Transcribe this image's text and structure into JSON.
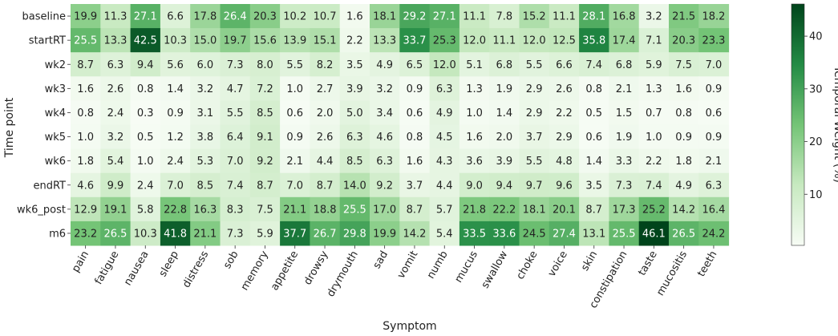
{
  "chart_data": {
    "type": "heatmap",
    "title": "",
    "xlabel": "Symptom",
    "ylabel": "Time point",
    "colorbar_label": "Temporal Weight (%)",
    "colorbar_ticks": [
      10,
      20,
      30,
      40
    ],
    "value_range": [
      0.3,
      46.1
    ],
    "colormap": {
      "low": "#f7fcf5",
      "mid": "#74c476",
      "high": "#00441b"
    },
    "grid": false,
    "x_categories": [
      "pain",
      "fatigue",
      "nausea",
      "sleep",
      "distress",
      "sob",
      "memory",
      "appetite",
      "drowsy",
      "drymouth",
      "sad",
      "vomit",
      "numb",
      "mucus",
      "swallow",
      "choke",
      "voice",
      "skin",
      "constipation",
      "taste",
      "mucositis",
      "teeth"
    ],
    "y_categories": [
      "baseline",
      "startRT",
      "wk2",
      "wk3",
      "wk4",
      "wk5",
      "wk6",
      "endRT",
      "wk6_post",
      "m6"
    ],
    "values": [
      [
        19.9,
        11.3,
        27.1,
        6.6,
        17.8,
        26.4,
        20.3,
        10.2,
        10.7,
        1.6,
        18.1,
        29.2,
        27.1,
        11.1,
        7.8,
        15.2,
        11.1,
        28.1,
        16.8,
        3.2,
        21.5,
        18.2
      ],
      [
        25.5,
        13.3,
        42.5,
        10.3,
        15.0,
        19.7,
        15.6,
        13.9,
        15.1,
        2.2,
        13.3,
        33.7,
        25.3,
        12.0,
        11.1,
        12.0,
        12.5,
        35.8,
        17.4,
        7.1,
        20.3,
        23.3
      ],
      [
        8.7,
        6.3,
        9.4,
        5.6,
        6.0,
        7.3,
        8.0,
        5.5,
        8.2,
        3.5,
        4.9,
        6.5,
        12.0,
        5.1,
        6.8,
        5.5,
        6.6,
        7.4,
        6.8,
        5.9,
        7.5,
        7.0
      ],
      [
        1.6,
        2.6,
        0.8,
        1.4,
        3.2,
        4.7,
        7.2,
        1.0,
        2.7,
        3.9,
        3.2,
        0.9,
        6.3,
        1.3,
        1.9,
        2.9,
        2.6,
        0.8,
        2.1,
        1.3,
        1.6,
        0.9
      ],
      [
        0.8,
        2.4,
        0.3,
        0.9,
        3.1,
        5.5,
        8.5,
        0.6,
        2.0,
        5.0,
        3.4,
        0.6,
        4.9,
        1.0,
        1.4,
        2.9,
        2.2,
        0.5,
        1.5,
        0.7,
        0.8,
        0.6
      ],
      [
        1.0,
        3.2,
        0.5,
        1.2,
        3.8,
        6.4,
        9.1,
        0.9,
        2.6,
        6.3,
        4.6,
        0.8,
        4.5,
        1.6,
        2.0,
        3.7,
        2.9,
        0.6,
        1.9,
        1.0,
        0.9,
        0.9
      ],
      [
        1.8,
        5.4,
        1.0,
        2.4,
        5.3,
        7.0,
        9.2,
        2.1,
        4.4,
        8.5,
        6.3,
        1.6,
        4.3,
        3.6,
        3.9,
        5.5,
        4.8,
        1.4,
        3.3,
        2.2,
        1.8,
        2.1
      ],
      [
        4.6,
        9.9,
        2.4,
        7.0,
        8.5,
        7.4,
        8.7,
        7.0,
        8.7,
        14.0,
        9.2,
        3.7,
        4.4,
        9.0,
        9.4,
        9.7,
        9.6,
        3.5,
        7.3,
        7.4,
        4.9,
        6.3
      ],
      [
        12.9,
        19.1,
        5.8,
        22.8,
        16.3,
        8.3,
        7.5,
        21.1,
        18.8,
        25.5,
        17.0,
        8.7,
        5.7,
        21.8,
        22.2,
        18.1,
        20.1,
        8.7,
        17.3,
        25.2,
        14.2,
        16.4
      ],
      [
        23.2,
        26.5,
        10.3,
        41.8,
        21.1,
        7.3,
        5.9,
        37.7,
        26.7,
        29.8,
        19.9,
        14.2,
        5.4,
        33.5,
        33.6,
        24.5,
        27.4,
        13.1,
        25.5,
        46.1,
        26.5,
        24.2
      ]
    ]
  }
}
